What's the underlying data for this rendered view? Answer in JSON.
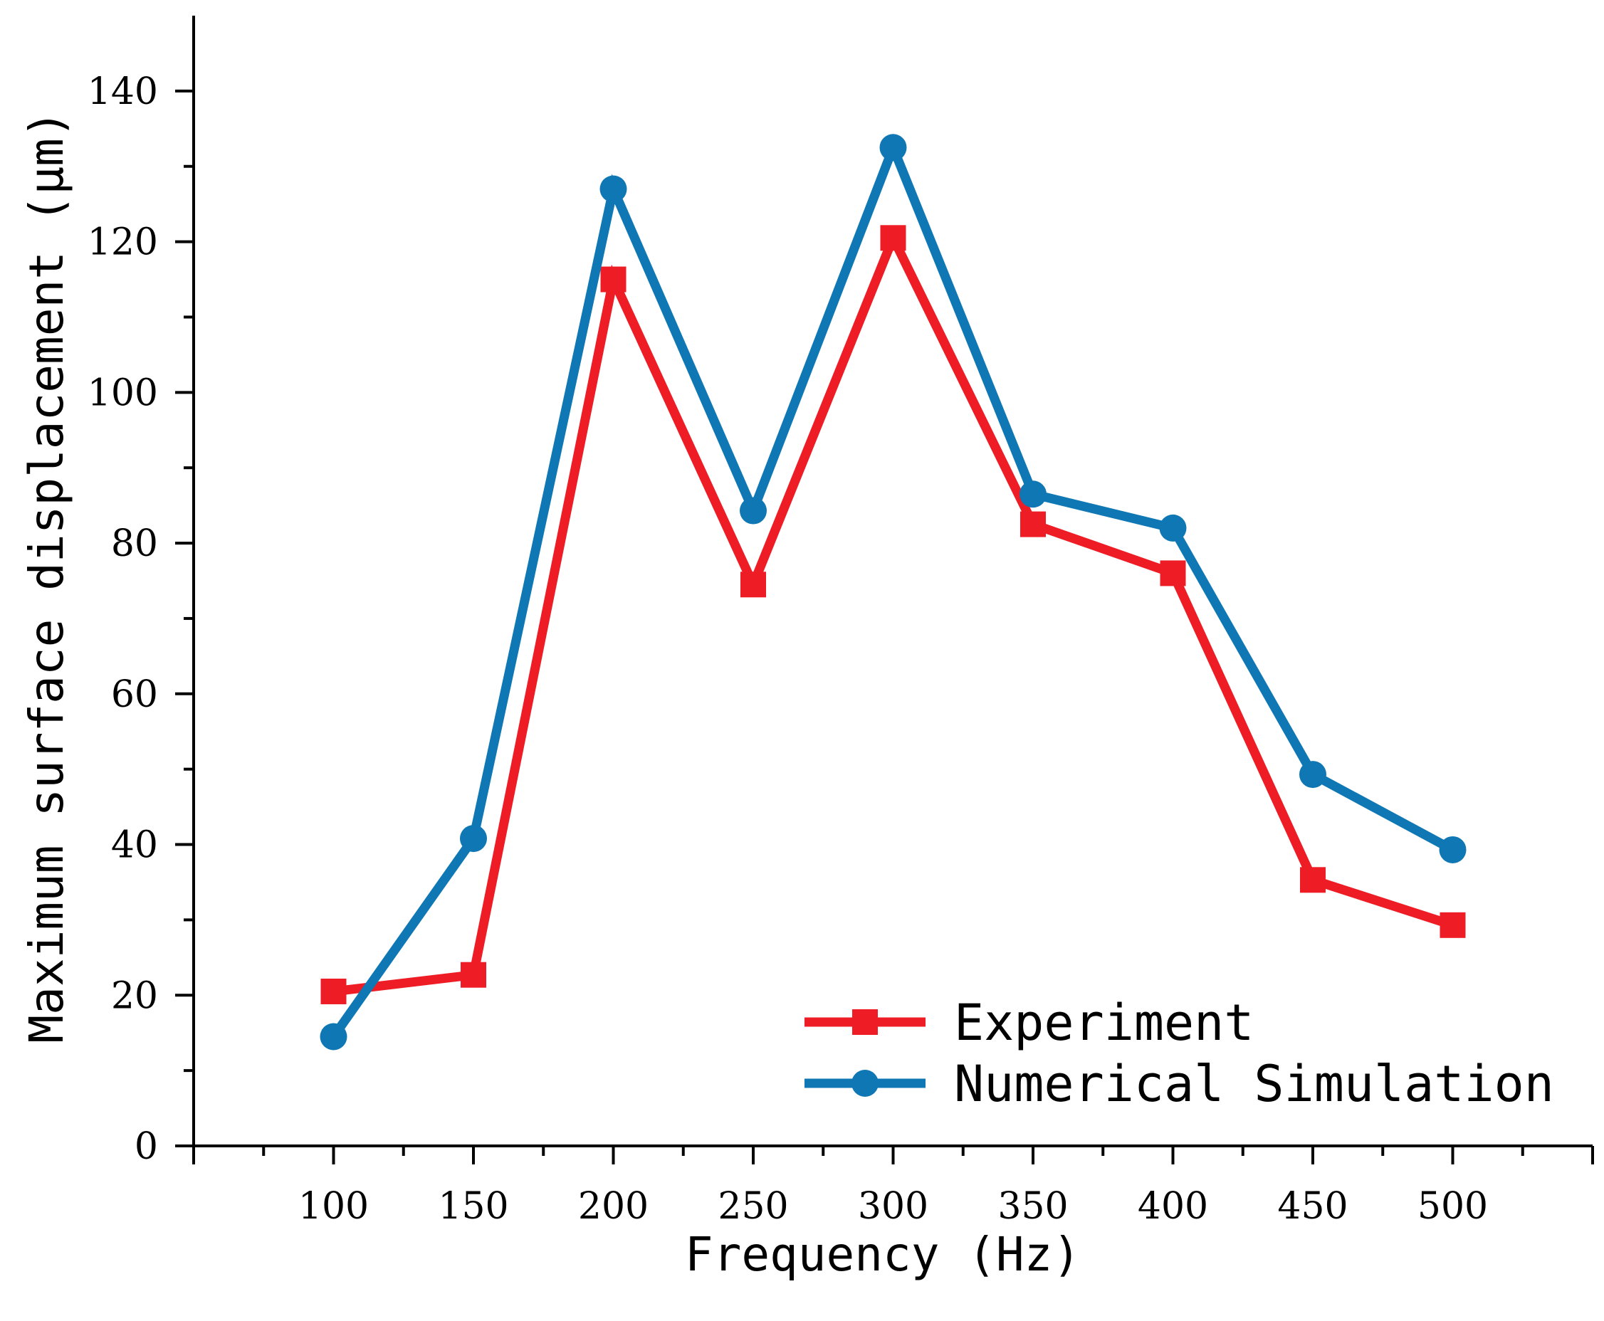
{
  "chart_data": {
    "type": "line",
    "title": "",
    "xlabel": "Frequency (Hz)",
    "ylabel": "Maximum surface displacement (μm)",
    "xlim": [
      50,
      550
    ],
    "ylim": [
      0,
      150
    ],
    "x_ticks": [
      100,
      150,
      200,
      250,
      300,
      350,
      400,
      450,
      500
    ],
    "y_ticks": [
      0,
      20,
      40,
      60,
      80,
      100,
      120,
      140
    ],
    "grid": false,
    "legend_position": "bottom-right",
    "series": [
      {
        "name": "Experiment",
        "color": "#ee1c25",
        "marker": "square",
        "x": [
          100,
          150,
          200,
          250,
          300,
          350,
          400,
          450,
          500
        ],
        "values": [
          20.5,
          22.7,
          115,
          74.5,
          120.5,
          82.5,
          76,
          35.3,
          29.3
        ]
      },
      {
        "name": "Numerical Simulation",
        "color": "#0f78b4",
        "marker": "circle",
        "x": [
          100,
          150,
          200,
          250,
          300,
          350,
          400,
          450,
          500
        ],
        "values": [
          14.5,
          40.8,
          127,
          84.3,
          132.5,
          86.5,
          82,
          49.3,
          39.3
        ]
      }
    ]
  }
}
